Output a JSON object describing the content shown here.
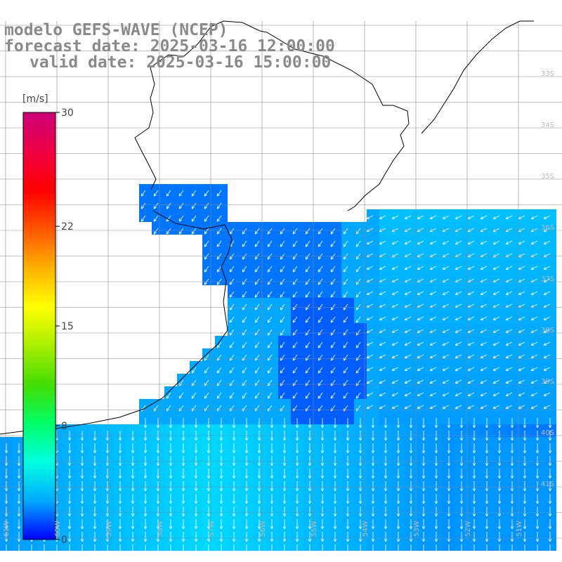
{
  "title": {
    "line1": "modelo GEFS-WAVE (NCEP)",
    "line2": "forecast date: 2025-03-16 12:00:00",
    "line3": "valid date: 2025-03-16 15:00:00"
  },
  "colorbar": {
    "unit": "[m/s]",
    "ticks": [
      "30",
      "22",
      "15",
      "8",
      "0"
    ],
    "tick_values": [
      30,
      22,
      15,
      8,
      0
    ],
    "colors": [
      "#0000ff",
      "#00aaff",
      "#00ffe0",
      "#00ff66",
      "#44dd00",
      "#aaee00",
      "#ffff00",
      "#ffb000",
      "#ff5500",
      "#ff0000",
      "#ee0044",
      "#cc0077"
    ]
  },
  "grid": {
    "lat_labels": [
      "33S",
      "34S",
      "35S",
      "36S",
      "37S",
      "38S",
      "39S",
      "40S",
      "41S"
    ],
    "lon_labels": [
      "61W",
      "60W",
      "59W",
      "58W",
      "57W",
      "56W",
      "55W",
      "54W",
      "53W",
      "52W",
      "51W"
    ]
  },
  "field": {
    "land_color": "#ffffff",
    "coast_color": "#000000",
    "arrow_color": "#ffffff"
  }
}
